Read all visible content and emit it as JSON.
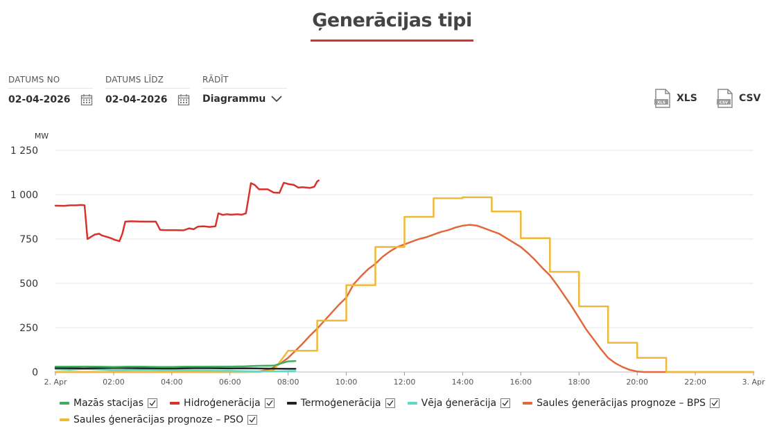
{
  "page": {
    "title": "Ģenerācijas tipi"
  },
  "filters": {
    "date_from": {
      "label": "DATUMS NO",
      "value": "02-04-2026"
    },
    "date_to": {
      "label": "DATUMS LĪDZ",
      "value": "02-04-2026"
    },
    "show": {
      "label": "RĀDĪT",
      "value": "Diagrammu"
    }
  },
  "exports": {
    "xls": "XLS",
    "csv": "CSV"
  },
  "chart_data": {
    "type": "line",
    "title": "",
    "ylabel": "MW",
    "xlabel": "",
    "ylim": [
      0,
      1250
    ],
    "xlim": [
      0,
      24
    ],
    "grid": true,
    "legend_position": "bottom",
    "y_ticks": [
      {
        "value": 0,
        "label": "0"
      },
      {
        "value": 250,
        "label": "250"
      },
      {
        "value": 500,
        "label": "500"
      },
      {
        "value": 750,
        "label": "750"
      },
      {
        "value": 1000,
        "label": "1 000"
      },
      {
        "value": 1250,
        "label": "1 250"
      }
    ],
    "x_ticks": [
      {
        "value": 0,
        "label": "2. Apr"
      },
      {
        "value": 2,
        "label": "02:00"
      },
      {
        "value": 4,
        "label": "04:00"
      },
      {
        "value": 6,
        "label": "06:00"
      },
      {
        "value": 8,
        "label": "08:00"
      },
      {
        "value": 10,
        "label": "10:00"
      },
      {
        "value": 12,
        "label": "12:00"
      },
      {
        "value": 14,
        "label": "14:00"
      },
      {
        "value": 16,
        "label": "16:00"
      },
      {
        "value": 18,
        "label": "18:00"
      },
      {
        "value": 20,
        "label": "20:00"
      },
      {
        "value": 22,
        "label": "22:00"
      },
      {
        "value": 24,
        "label": "3. Apr"
      }
    ],
    "series": [
      {
        "name": "Mazās stacijas",
        "color": "#3fae5e",
        "checked": true,
        "points": [
          [
            0,
            30
          ],
          [
            0.5,
            30
          ],
          [
            1,
            31
          ],
          [
            1.5,
            30
          ],
          [
            2,
            29
          ],
          [
            2.5,
            30
          ],
          [
            3,
            30
          ],
          [
            3.5,
            29
          ],
          [
            4,
            29
          ],
          [
            4.5,
            30
          ],
          [
            5,
            30
          ],
          [
            5.5,
            31
          ],
          [
            6,
            31
          ],
          [
            6.5,
            32
          ],
          [
            7,
            35
          ],
          [
            7.5,
            36
          ],
          [
            8,
            60
          ],
          [
            8.25,
            62
          ]
        ]
      },
      {
        "name": "Hidroģenerācija",
        "color": "#d9302a",
        "checked": true,
        "points": [
          [
            0,
            938
          ],
          [
            0.3,
            937
          ],
          [
            0.5,
            940
          ],
          [
            0.7,
            940
          ],
          [
            0.9,
            942
          ],
          [
            1.0,
            940
          ],
          [
            1.1,
            750
          ],
          [
            1.2,
            760
          ],
          [
            1.35,
            775
          ],
          [
            1.5,
            780
          ],
          [
            1.6,
            770
          ],
          [
            1.75,
            763
          ],
          [
            1.9,
            755
          ],
          [
            2.05,
            745
          ],
          [
            2.2,
            738
          ],
          [
            2.3,
            780
          ],
          [
            2.4,
            848
          ],
          [
            2.6,
            850
          ],
          [
            2.9,
            849
          ],
          [
            3.2,
            848
          ],
          [
            3.45,
            848
          ],
          [
            3.6,
            802
          ],
          [
            3.8,
            800
          ],
          [
            4.1,
            800
          ],
          [
            4.4,
            799
          ],
          [
            4.6,
            810
          ],
          [
            4.75,
            805
          ],
          [
            4.9,
            820
          ],
          [
            5.1,
            822
          ],
          [
            5.3,
            818
          ],
          [
            5.5,
            822
          ],
          [
            5.6,
            895
          ],
          [
            5.75,
            886
          ],
          [
            5.9,
            890
          ],
          [
            6.05,
            887
          ],
          [
            6.25,
            890
          ],
          [
            6.4,
            887
          ],
          [
            6.55,
            895
          ],
          [
            6.72,
            1065
          ],
          [
            6.85,
            1055
          ],
          [
            7.0,
            1030
          ],
          [
            7.3,
            1030
          ],
          [
            7.5,
            1012
          ],
          [
            7.7,
            1010
          ],
          [
            7.85,
            1067
          ],
          [
            8.0,
            1060
          ],
          [
            8.2,
            1055
          ],
          [
            8.35,
            1040
          ],
          [
            8.5,
            1042
          ],
          [
            8.75,
            1038
          ],
          [
            8.9,
            1045
          ],
          [
            9.0,
            1075
          ],
          [
            9.05,
            1080
          ]
        ]
      },
      {
        "name": "Termoģenerācija",
        "color": "#222222",
        "checked": true,
        "points": [
          [
            0,
            22
          ],
          [
            1,
            20
          ],
          [
            2,
            23
          ],
          [
            3,
            21
          ],
          [
            4,
            20
          ],
          [
            5,
            22
          ],
          [
            6,
            20
          ],
          [
            6.5,
            21
          ],
          [
            7,
            20
          ],
          [
            7.5,
            19
          ],
          [
            8,
            18
          ],
          [
            8.25,
            18
          ]
        ]
      },
      {
        "name": "Vēja ģenerācija",
        "color": "#5fd8c8",
        "checked": true,
        "points": [
          [
            0,
            16
          ],
          [
            0.5,
            12
          ],
          [
            1,
            18
          ],
          [
            2,
            10
          ],
          [
            3,
            12
          ],
          [
            4,
            10
          ],
          [
            5,
            9
          ],
          [
            6,
            7
          ],
          [
            6.5,
            5
          ],
          [
            7,
            4
          ],
          [
            7.5,
            3
          ],
          [
            8,
            5
          ],
          [
            8.25,
            6
          ]
        ]
      },
      {
        "name": "Saules ģenerācijas prognoze – BPS",
        "color": "#e2673a",
        "checked": true,
        "points": [
          [
            0,
            0
          ],
          [
            6.5,
            0
          ],
          [
            7,
            3
          ],
          [
            7.25,
            10
          ],
          [
            7.5,
            25
          ],
          [
            7.75,
            50
          ],
          [
            8,
            80
          ],
          [
            8.25,
            120
          ],
          [
            8.5,
            160
          ],
          [
            8.75,
            205
          ],
          [
            9,
            245
          ],
          [
            9.25,
            290
          ],
          [
            9.5,
            335
          ],
          [
            9.75,
            380
          ],
          [
            10,
            420
          ],
          [
            10.25,
            495
          ],
          [
            10.5,
            540
          ],
          [
            10.75,
            580
          ],
          [
            11,
            610
          ],
          [
            11.25,
            650
          ],
          [
            11.5,
            680
          ],
          [
            11.75,
            705
          ],
          [
            12,
            720
          ],
          [
            12.25,
            735
          ],
          [
            12.5,
            750
          ],
          [
            12.75,
            760
          ],
          [
            13,
            775
          ],
          [
            13.25,
            790
          ],
          [
            13.5,
            800
          ],
          [
            13.75,
            815
          ],
          [
            14,
            825
          ],
          [
            14.25,
            830
          ],
          [
            14.5,
            825
          ],
          [
            14.75,
            810
          ],
          [
            15,
            795
          ],
          [
            15.25,
            780
          ],
          [
            15.5,
            755
          ],
          [
            15.75,
            730
          ],
          [
            16,
            705
          ],
          [
            16.25,
            670
          ],
          [
            16.5,
            630
          ],
          [
            16.75,
            585
          ],
          [
            17,
            545
          ],
          [
            17.25,
            490
          ],
          [
            17.5,
            430
          ],
          [
            17.75,
            370
          ],
          [
            18,
            305
          ],
          [
            18.25,
            240
          ],
          [
            18.5,
            185
          ],
          [
            18.75,
            130
          ],
          [
            19,
            80
          ],
          [
            19.25,
            50
          ],
          [
            19.5,
            28
          ],
          [
            19.75,
            12
          ],
          [
            20,
            3
          ],
          [
            20.25,
            0
          ],
          [
            24,
            0
          ]
        ]
      },
      {
        "name": "Saules ģenerācijas prognoze – PSO",
        "color": "#f0b935",
        "checked": true,
        "points": [
          [
            0,
            0
          ],
          [
            7,
            0
          ],
          [
            7.5,
            10
          ],
          [
            8,
            120
          ],
          [
            9,
            120
          ],
          [
            9,
            290
          ],
          [
            10,
            290
          ],
          [
            10,
            490
          ],
          [
            11,
            490
          ],
          [
            11,
            705
          ],
          [
            12,
            705
          ],
          [
            12,
            875
          ],
          [
            13,
            875
          ],
          [
            13,
            980
          ],
          [
            14,
            980
          ],
          [
            14,
            985
          ],
          [
            15,
            985
          ],
          [
            15,
            905
          ],
          [
            16,
            905
          ],
          [
            16,
            755
          ],
          [
            17,
            755
          ],
          [
            17,
            565
          ],
          [
            18,
            565
          ],
          [
            18,
            370
          ],
          [
            19,
            370
          ],
          [
            19,
            165
          ],
          [
            20,
            165
          ],
          [
            20,
            80
          ],
          [
            21,
            80
          ],
          [
            21,
            0
          ],
          [
            24,
            0
          ]
        ]
      }
    ]
  }
}
